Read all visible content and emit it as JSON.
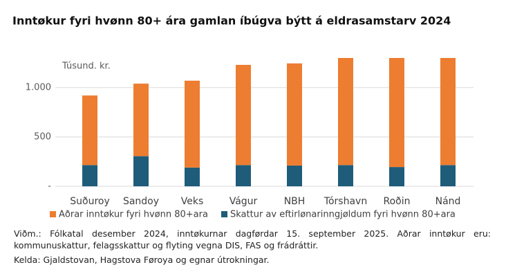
{
  "chart_data": {
    "type": "stacked-bar",
    "title": "Inntøkur fyri hvønn 80+ ára gamlan íbúgva býtt á eldrasamstarv 2024",
    "y_unit_label": "Túsund. kr.",
    "categories": [
      "Suðuroy",
      "Sandoy",
      "Veks",
      "Vágur",
      "NBH",
      "Tórshavn",
      "Roðin",
      "Nánd"
    ],
    "series": [
      {
        "name": "Aðrar inntøkur fyri hvønn 80+ara",
        "color": "#ed7d31",
        "values": [
          705,
          735,
          880,
          1015,
          1035,
          1085,
          1105,
          1085
        ]
      },
      {
        "name": "Skattur av eftirlønarinngjøldum fyri hvønn 80+ara",
        "color": "#1f5c7a",
        "values": [
          215,
          305,
          190,
          215,
          210,
          215,
          195,
          215
        ]
      }
    ],
    "ylim": [
      0,
      1300
    ],
    "yticks": [
      {
        "value": 0,
        "label": "-"
      },
      500,
      {
        "value": 1000,
        "label": "1.000"
      }
    ],
    "grid": true,
    "legend": "bottom"
  },
  "notes": [
    "Viðm.: Fólkatal desember 2024, inntøkurnar dagførdar 15. september 2025. Aðrar inntøkur eru: kommunuskattur, felagsskattur og flyting vegna DIS, FAS og frádráttir.",
    "Kelda: Gjaldstovan, Hagstova Føroya og egnar útrokningar."
  ]
}
